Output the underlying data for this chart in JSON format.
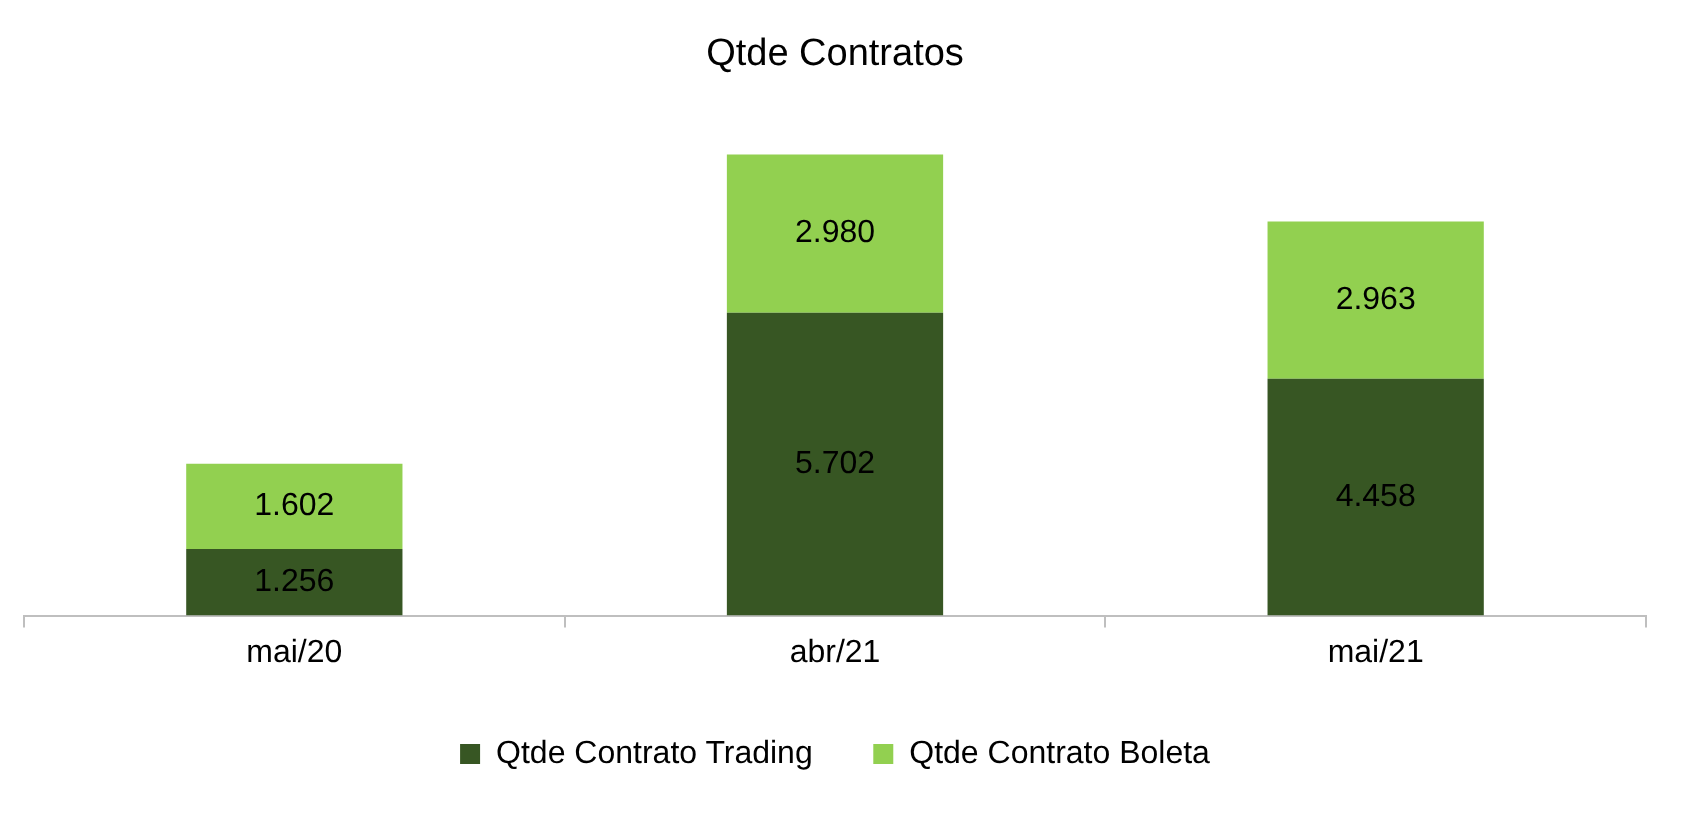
{
  "chart_data": {
    "type": "bar",
    "title": "Qtde Contratos",
    "categories": [
      "mai/20",
      "abr/21",
      "mai/21"
    ],
    "stacked": true,
    "legend": "bottom",
    "series": [
      {
        "name": "Qtde Contrato Trading",
        "color": "#375623",
        "values": [
          1256,
          5702,
          4458
        ],
        "value_labels": [
          "1.256",
          "5.702",
          "4.458"
        ]
      },
      {
        "name": "Qtde Contrato Boleta",
        "color": "#92d050",
        "values": [
          1602,
          2980,
          2963
        ],
        "value_labels": [
          "1.602",
          "2.980",
          "2.963"
        ]
      }
    ]
  }
}
